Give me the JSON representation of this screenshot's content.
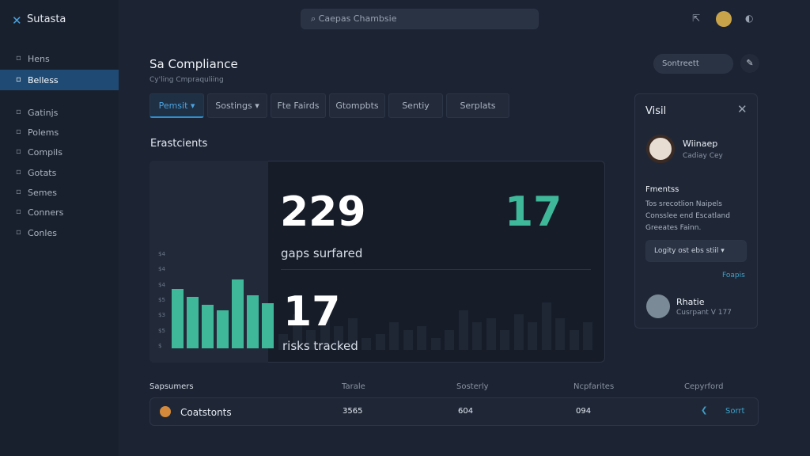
{
  "sidebar": {
    "logo": "Sutasta",
    "nav": [
      "Hens",
      "Belless",
      "Gatinjs",
      "Polems",
      "Compils",
      "Gotats",
      "Semes",
      "Conners",
      "Conles"
    ],
    "active": 1
  },
  "search": "Caepas Chambsie",
  "header": {
    "title": "Sa Compliance",
    "subtitle": "Cy'ling Cmpraquliing",
    "button": "Sontreett"
  },
  "tabs": [
    "Pemsit ▾",
    "Sostings ▾",
    "Fte Fairds",
    "Gtompbts",
    "Sentiy",
    "Serplats"
  ],
  "section": "Erastcients",
  "chart": {
    "y_labels": [
      "$4",
      "$4",
      "$4",
      "$5",
      "$3",
      "$5",
      "$"
    ],
    "values": [
      75,
      65,
      55,
      48,
      87,
      67,
      57
    ],
    "ylim": [
      0,
      100
    ],
    "color": "#3fb89a"
  },
  "stats": {
    "big1": "229",
    "big1_label": "gaps surfared",
    "big2": "17",
    "big3": "17",
    "big3_label": "risks tracked"
  },
  "panel": {
    "title": "Visil",
    "user1": {
      "name": "Wiinaep",
      "role": "Cadiay Cey"
    },
    "heading": "Fmentss",
    "text": [
      "Tos srecotlion Naipels",
      "Consslee end Escatland",
      "Greeates Fainn."
    ],
    "dropdown": "Logity ost ebs stiil ▾",
    "link": "Foapis",
    "user2": {
      "name": "Rhatie",
      "role": "Cusrpant V 177"
    }
  },
  "table": {
    "headers": [
      "Sapsumers",
      "Tarale",
      "Sosterly",
      "Ncpfarites",
      "Cepyrford"
    ],
    "rows": [
      [
        "Coatstonts",
        "3565",
        "604",
        "094",
        "Sorrt"
      ]
    ]
  }
}
